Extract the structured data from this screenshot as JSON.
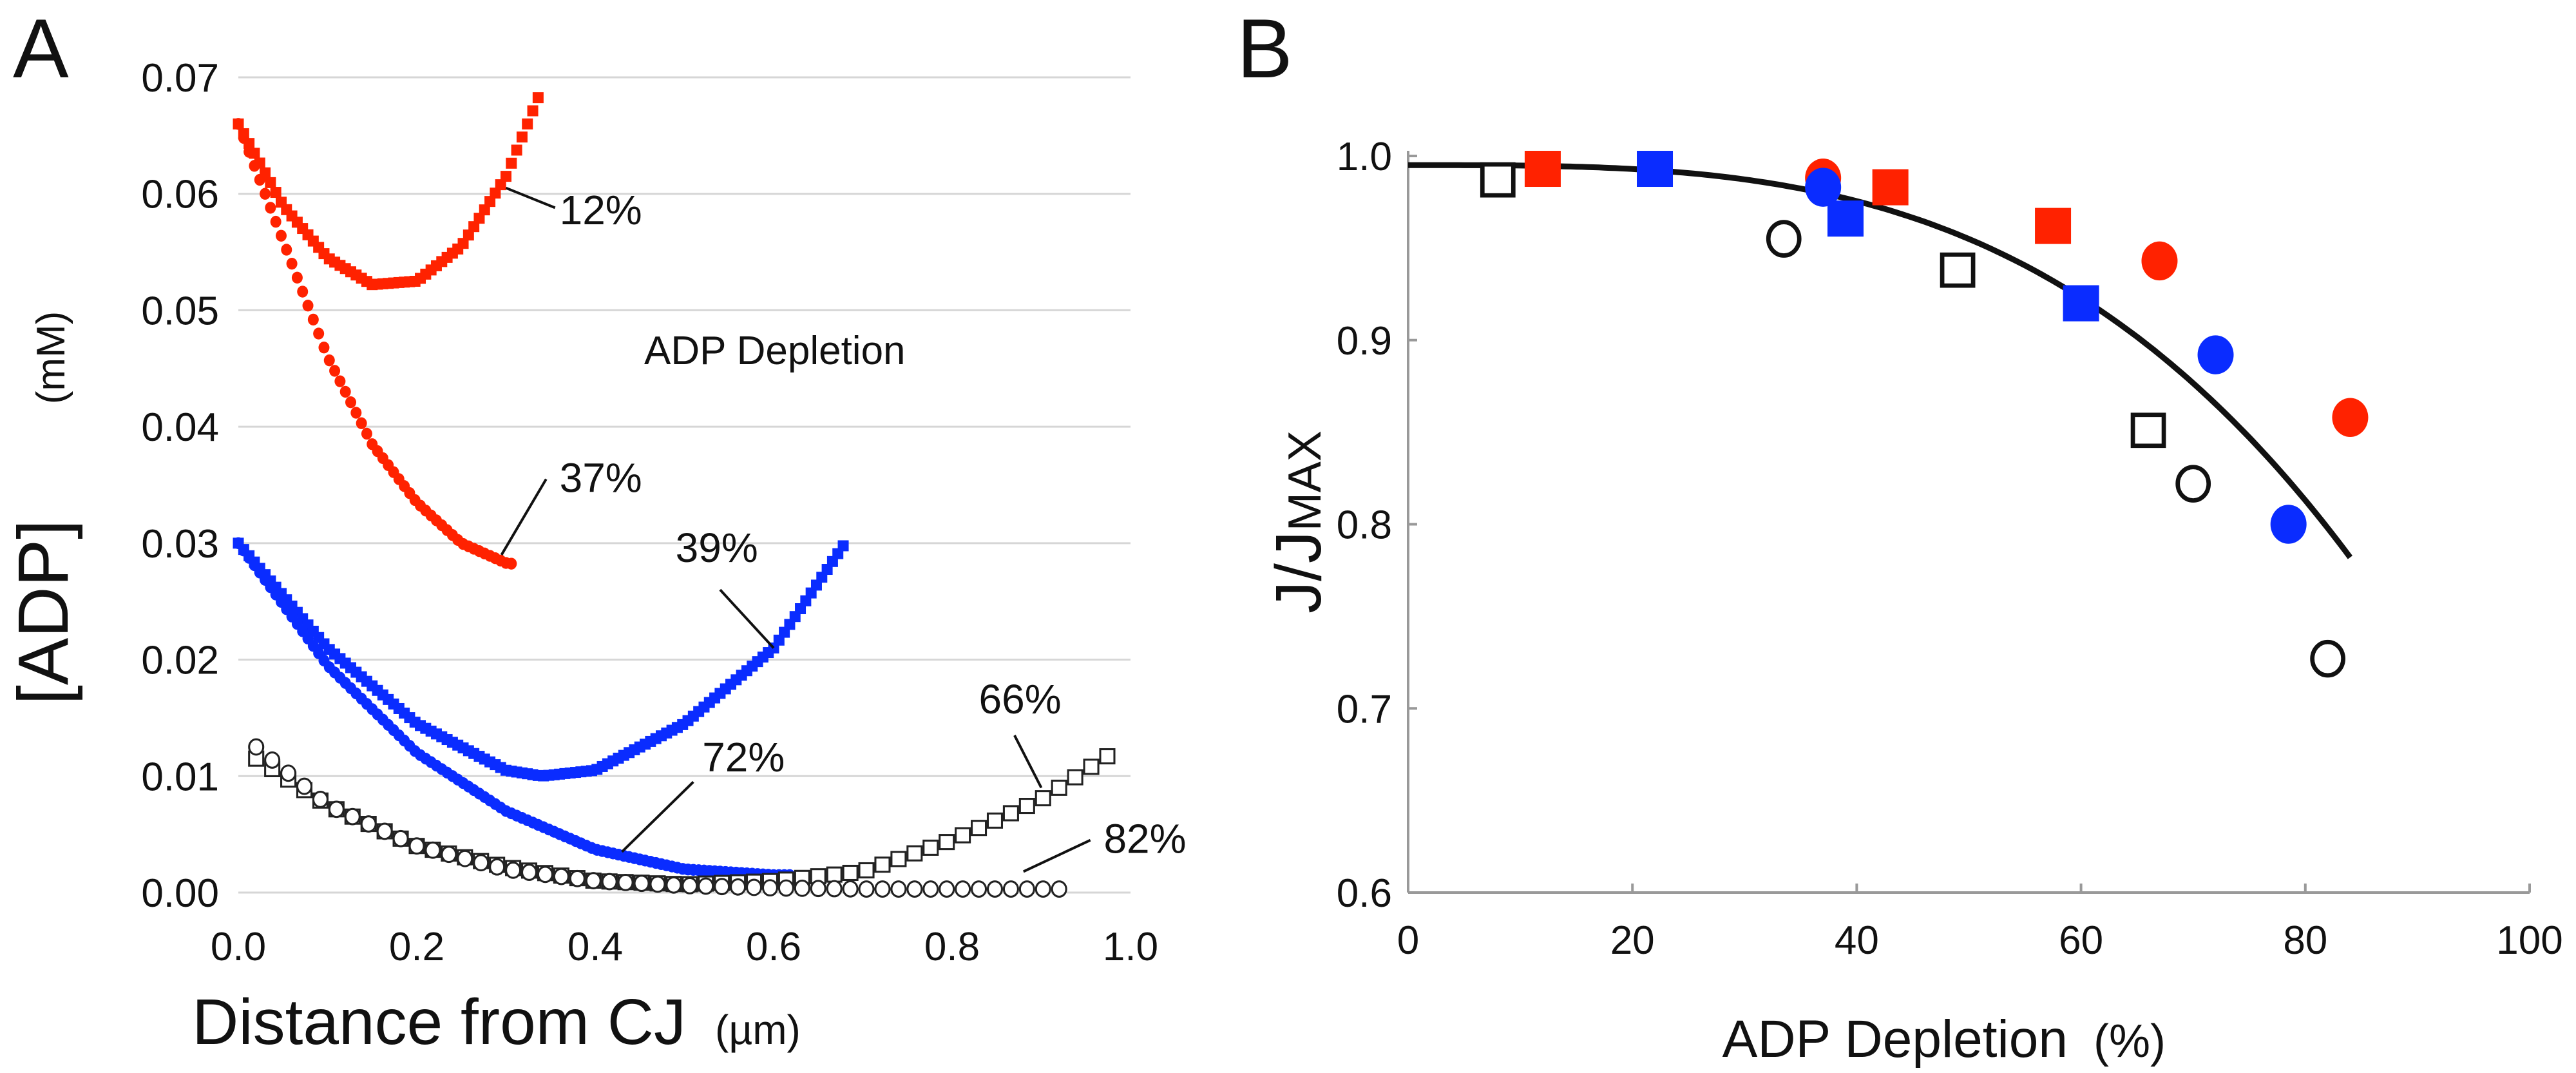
{
  "chart_data": [
    {
      "panel_label": "A",
      "type": "scatter",
      "xlabel": "Distance from CJ",
      "xunit": "(µm)",
      "ylabel": "[ADP]",
      "yunit": "(mM)",
      "xlim": [
        0,
        1.0
      ],
      "ylim": [
        0,
        0.07
      ],
      "xticks": [
        "0.0",
        "0.2",
        "0.4",
        "0.6",
        "0.8",
        "1.0"
      ],
      "yticks": [
        "0.00",
        "0.01",
        "0.02",
        "0.03",
        "0.04",
        "0.05",
        "0.06",
        "0.07"
      ],
      "grid": "horizontal",
      "annotation": "ADP Depletion",
      "colors": {
        "red": "#ff2200",
        "blue": "#0a2cff",
        "black": "#222222"
      },
      "series": [
        {
          "name": "12%",
          "marker": "square",
          "color": "red",
          "fill": true,
          "x": [
            0,
            0.05,
            0.1,
            0.15,
            0.2,
            0.25,
            0.3,
            0.34
          ],
          "y": [
            0.066,
            0.059,
            0.0545,
            0.0522,
            0.0525,
            0.0555,
            0.0615,
            0.069
          ]
        },
        {
          "name": "37%",
          "marker": "circle",
          "color": "red",
          "fill": true,
          "x": [
            0,
            0.05,
            0.1,
            0.15,
            0.2,
            0.25,
            0.3,
            0.31
          ],
          "y": [
            0.066,
            0.056,
            0.046,
            0.0385,
            0.0335,
            0.03,
            0.0283,
            0.0282
          ]
        },
        {
          "name": "39%",
          "marker": "square",
          "color": "blue",
          "fill": true,
          "x": [
            0,
            0.1,
            0.2,
            0.3,
            0.34,
            0.4,
            0.5,
            0.6,
            0.68
          ],
          "y": [
            0.03,
            0.021,
            0.0145,
            0.0105,
            0.01,
            0.0105,
            0.0145,
            0.021,
            0.03
          ]
        },
        {
          "name": "72%",
          "marker": "circle",
          "color": "blue",
          "fill": true,
          "x": [
            0,
            0.1,
            0.2,
            0.3,
            0.4,
            0.5,
            0.6,
            0.62
          ],
          "y": [
            0.03,
            0.0195,
            0.012,
            0.007,
            0.0037,
            0.002,
            0.0015,
            0.0015
          ]
        },
        {
          "name": "66%",
          "marker": "square",
          "color": "black",
          "fill": false,
          "x": [
            0.02,
            0.1,
            0.2,
            0.3,
            0.4,
            0.5,
            0.6,
            0.7,
            0.8,
            0.9,
            0.99
          ],
          "y": [
            0.0115,
            0.0075,
            0.004,
            0.0022,
            0.001,
            0.0007,
            0.001,
            0.0018,
            0.0045,
            0.008,
            0.0125
          ]
        },
        {
          "name": "82%",
          "marker": "circle",
          "color": "black",
          "fill": false,
          "x": [
            0.02,
            0.1,
            0.2,
            0.3,
            0.4,
            0.5,
            0.6,
            0.7,
            0.8,
            0.93
          ],
          "y": [
            0.0125,
            0.0075,
            0.004,
            0.002,
            0.001,
            0.0006,
            0.0004,
            0.0003,
            0.0003,
            0.0003
          ]
        }
      ]
    },
    {
      "panel_label": "B",
      "type": "scatter",
      "xlabel": "ADP Depletion",
      "xunit": "(%)",
      "ylabel": "J/J",
      "ylabel_sub": "MAX",
      "xlim": [
        0,
        100
      ],
      "ylim": [
        0.6,
        1.0
      ],
      "xticks": [
        "0",
        "20",
        "40",
        "60",
        "80",
        "100"
      ],
      "yticks": [
        "0.6",
        "0.7",
        "0.8",
        "0.9",
        "1.0"
      ],
      "grid": "none",
      "colors": {
        "red": "#ff2200",
        "blue": "#0a2cff",
        "black": "#111111"
      },
      "series": [
        {
          "name": "red squares",
          "marker": "square",
          "color": "red",
          "fill": true,
          "x": [
            12,
            43,
            57.5
          ],
          "y": [
            0.993,
            0.983,
            0.962
          ]
        },
        {
          "name": "red circles",
          "marker": "circle",
          "color": "red",
          "fill": true,
          "x": [
            37,
            67,
            84
          ],
          "y": [
            0.988,
            0.943,
            0.858
          ]
        },
        {
          "name": "blue squares",
          "marker": "square",
          "color": "blue",
          "fill": true,
          "x": [
            22,
            39,
            60
          ],
          "y": [
            0.993,
            0.966,
            0.92
          ]
        },
        {
          "name": "blue circles",
          "marker": "circle",
          "color": "blue",
          "fill": true,
          "x": [
            37,
            72,
            78.5
          ],
          "y": [
            0.983,
            0.892,
            0.8
          ]
        },
        {
          "name": "black open squares",
          "marker": "square",
          "color": "black",
          "fill": false,
          "x": [
            8,
            49,
            66
          ],
          "y": [
            0.987,
            0.938,
            0.851
          ]
        },
        {
          "name": "black open circles",
          "marker": "circle",
          "color": "black",
          "fill": false,
          "x": [
            33.5,
            70,
            82
          ],
          "y": [
            0.955,
            0.822,
            0.727
          ]
        }
      ],
      "fit": {
        "type": "power",
        "x_range": [
          0,
          84
        ],
        "y0": 0.995,
        "y_end": 0.782,
        "exponent": 3.22
      }
    }
  ]
}
